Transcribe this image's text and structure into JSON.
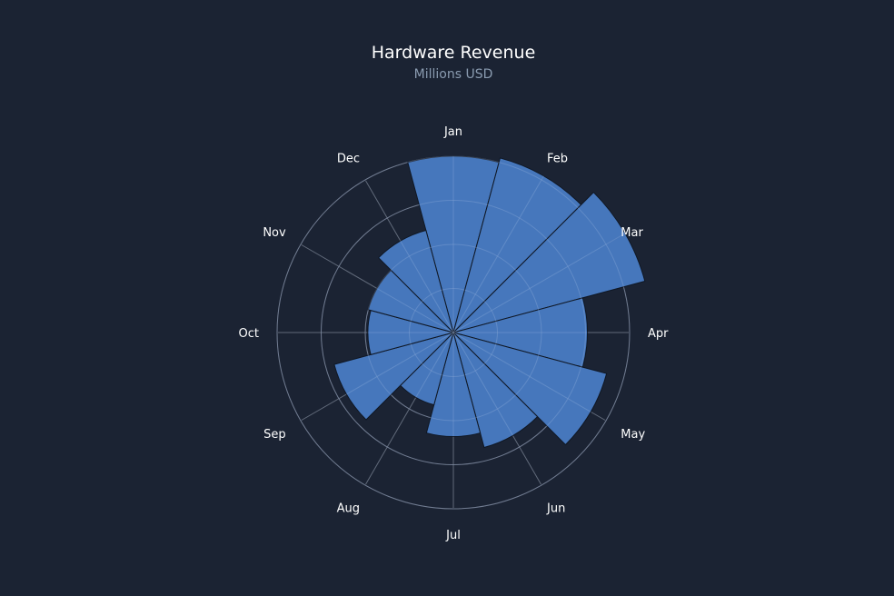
{
  "chart_data": {
    "type": "polar-area",
    "title": "Hardware Revenue",
    "subtitle": "Millions USD",
    "categories": [
      "Jan",
      "Feb",
      "Mar",
      "Apr",
      "May",
      "Jun",
      "Jul",
      "Aug",
      "Sep",
      "Oct",
      "Nov",
      "Dec"
    ],
    "values": [
      200,
      205,
      225,
      152,
      180,
      135,
      118,
      85,
      140,
      97,
      100,
      120
    ],
    "rmax": 250,
    "grid_rings": [
      50,
      100,
      150,
      200
    ],
    "start_angle": "top",
    "direction": "clockwise",
    "colors": {
      "background": "#1b2333",
      "bar_fill": "#4a7fc8",
      "bar_stroke": "#0f1724",
      "grid": "#6e7787",
      "title": "#ffffff",
      "subtitle": "#8a9bb0",
      "labels": "#ffffff"
    }
  }
}
